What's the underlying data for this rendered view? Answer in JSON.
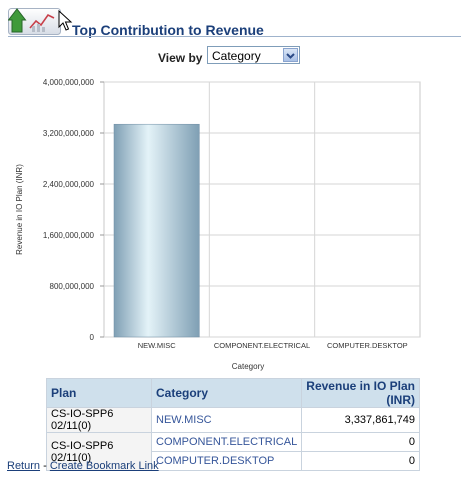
{
  "header": {
    "title": "Top Contribution to Revenue"
  },
  "view_by": {
    "label": "View by",
    "selected": "Category"
  },
  "chart_data": {
    "type": "bar",
    "categories": [
      "NEW.MISC",
      "COMPONENT.ELECTRICAL",
      "COMPUTER.DESKTOP"
    ],
    "series": [
      {
        "values": [
          3337861749,
          0,
          0
        ]
      }
    ],
    "xlabel": "Category",
    "ylabel": "Revenue in IO Plan (INR)",
    "ylim": [
      0,
      4000000000
    ],
    "yticks": [
      0,
      800000000,
      1600000000,
      2400000000,
      3200000000,
      4000000000
    ],
    "ytick_labels": [
      "0",
      "800,000,000",
      "1,600,000,000",
      "2,400,000,000",
      "3,200,000,000",
      "4,000,000,000"
    ],
    "grid": true,
    "bar_colors": [
      "#7f9fb4",
      "#e4f3f8"
    ]
  },
  "table": {
    "headers": [
      "Plan",
      "Category",
      "Revenue in IO Plan (INR)"
    ],
    "rows": [
      {
        "plan": "CS-IO-SPP6 02/11(0)",
        "category": "NEW.MISC",
        "revenue": "3,337,861,749"
      },
      {
        "plan": "CS-IO-SPP6 02/11(0)",
        "category": "COMPONENT.ELECTRICAL",
        "revenue": "0"
      },
      {
        "plan": "",
        "category": "COMPUTER.DESKTOP",
        "revenue": "0"
      }
    ]
  },
  "footer": {
    "return_label": "Return",
    "separator": "-",
    "bookmark_label": "Create Bookmark Link"
  },
  "icons": {
    "header_icon": "revenue-chart-icon",
    "cursor": "mouse-pointer-icon",
    "dropdown": "chevron-down-icon"
  }
}
